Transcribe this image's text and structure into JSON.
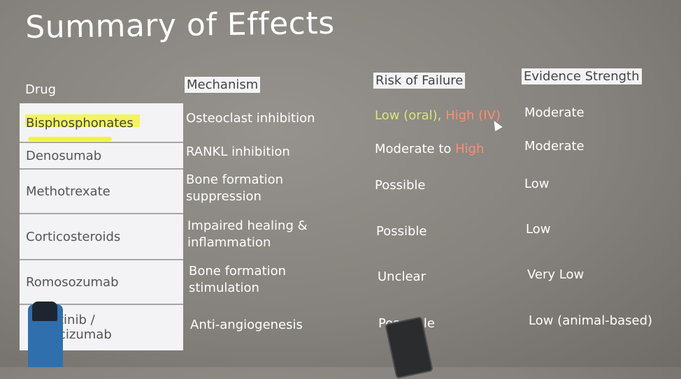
{
  "title": "Summary of Effects",
  "headers": {
    "drug": "Drug",
    "mechanism": "Mechanism",
    "risk": "Risk of Failure",
    "evidence": "Evidence Strength"
  },
  "rows": [
    {
      "drug": "Bisphosphonates",
      "mechanism": [
        "Osteoclast inhibition"
      ],
      "risk_parts": [
        {
          "text": "Low (oral), ",
          "color": "green"
        },
        {
          "text": "High (IV)",
          "color": "red"
        }
      ],
      "evidence": "Moderate"
    },
    {
      "drug": "Denosumab",
      "mechanism": [
        "RANKL inhibition"
      ],
      "risk_parts": [
        {
          "text": "Moderate to ",
          "color": "white"
        },
        {
          "text": "High",
          "color": "red"
        }
      ],
      "evidence": "Moderate"
    },
    {
      "drug": "Methotrexate",
      "mechanism": [
        "Bone formation",
        "suppression"
      ],
      "risk": "Possible",
      "evidence": "Low"
    },
    {
      "drug": "Corticosteroids",
      "mechanism": [
        "Impaired healing &",
        "inflammation"
      ],
      "risk": "Possible",
      "evidence": "Low"
    },
    {
      "drug": "Romosozumab",
      "mechanism": [
        "Bone formation",
        "stimulation"
      ],
      "risk": "Unclear",
      "evidence": "Very Low"
    },
    {
      "drug_lines": [
        "tinib /",
        "cizumab"
      ],
      "mechanism": [
        "Anti-angiogenesis"
      ],
      "risk": "Pos    ble",
      "evidence": "Low (animal-based)"
    }
  ],
  "colors": {
    "background": "#8a8681",
    "highlight": "#f2f43a",
    "green_text": "#d5e87a",
    "red_text": "#ff8d74"
  }
}
